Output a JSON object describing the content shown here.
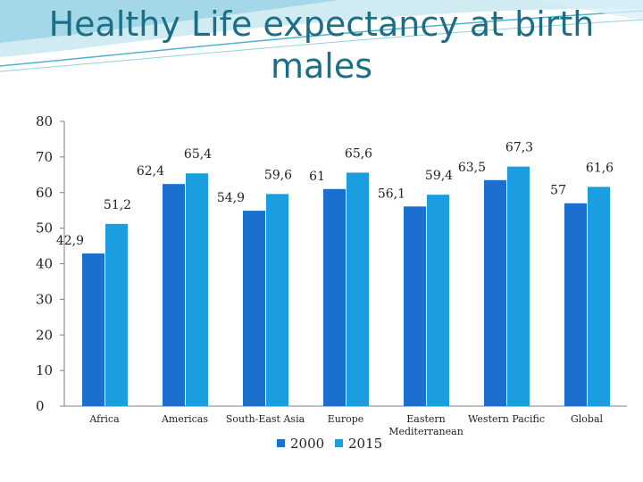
{
  "slide": {
    "title_line1": "Healthy Life expectancy at birth",
    "title_line2": "males"
  },
  "chart_data": {
    "type": "bar",
    "title": "Healthy Life expectancy at birth males",
    "xlabel": "",
    "ylabel": "",
    "ylim": [
      0,
      80
    ],
    "yticks": [
      0,
      10,
      20,
      30,
      40,
      50,
      60,
      70,
      80
    ],
    "grid": false,
    "legend_position": "bottom",
    "categories": [
      "Africa",
      "Americas",
      "South-East Asia",
      "Europe",
      "Eastern Mediterranean",
      "Western Pacific",
      "Global"
    ],
    "series": [
      {
        "name": "2000",
        "color": "#1a6fcf",
        "values": [
          42.9,
          62.4,
          54.9,
          61,
          56.1,
          63.5,
          57
        ],
        "labels": [
          "42,9",
          "62,4",
          "54,9",
          "61",
          "56,1",
          "63,5",
          "57"
        ]
      },
      {
        "name": "2015",
        "color": "#1a9ee0",
        "values": [
          51.2,
          65.4,
          59.6,
          65.6,
          59.4,
          67.3,
          61.6
        ],
        "labels": [
          "51,2",
          "65,4",
          "59,6",
          "65,6",
          "59,4",
          "67,3",
          "61,6"
        ]
      }
    ]
  }
}
